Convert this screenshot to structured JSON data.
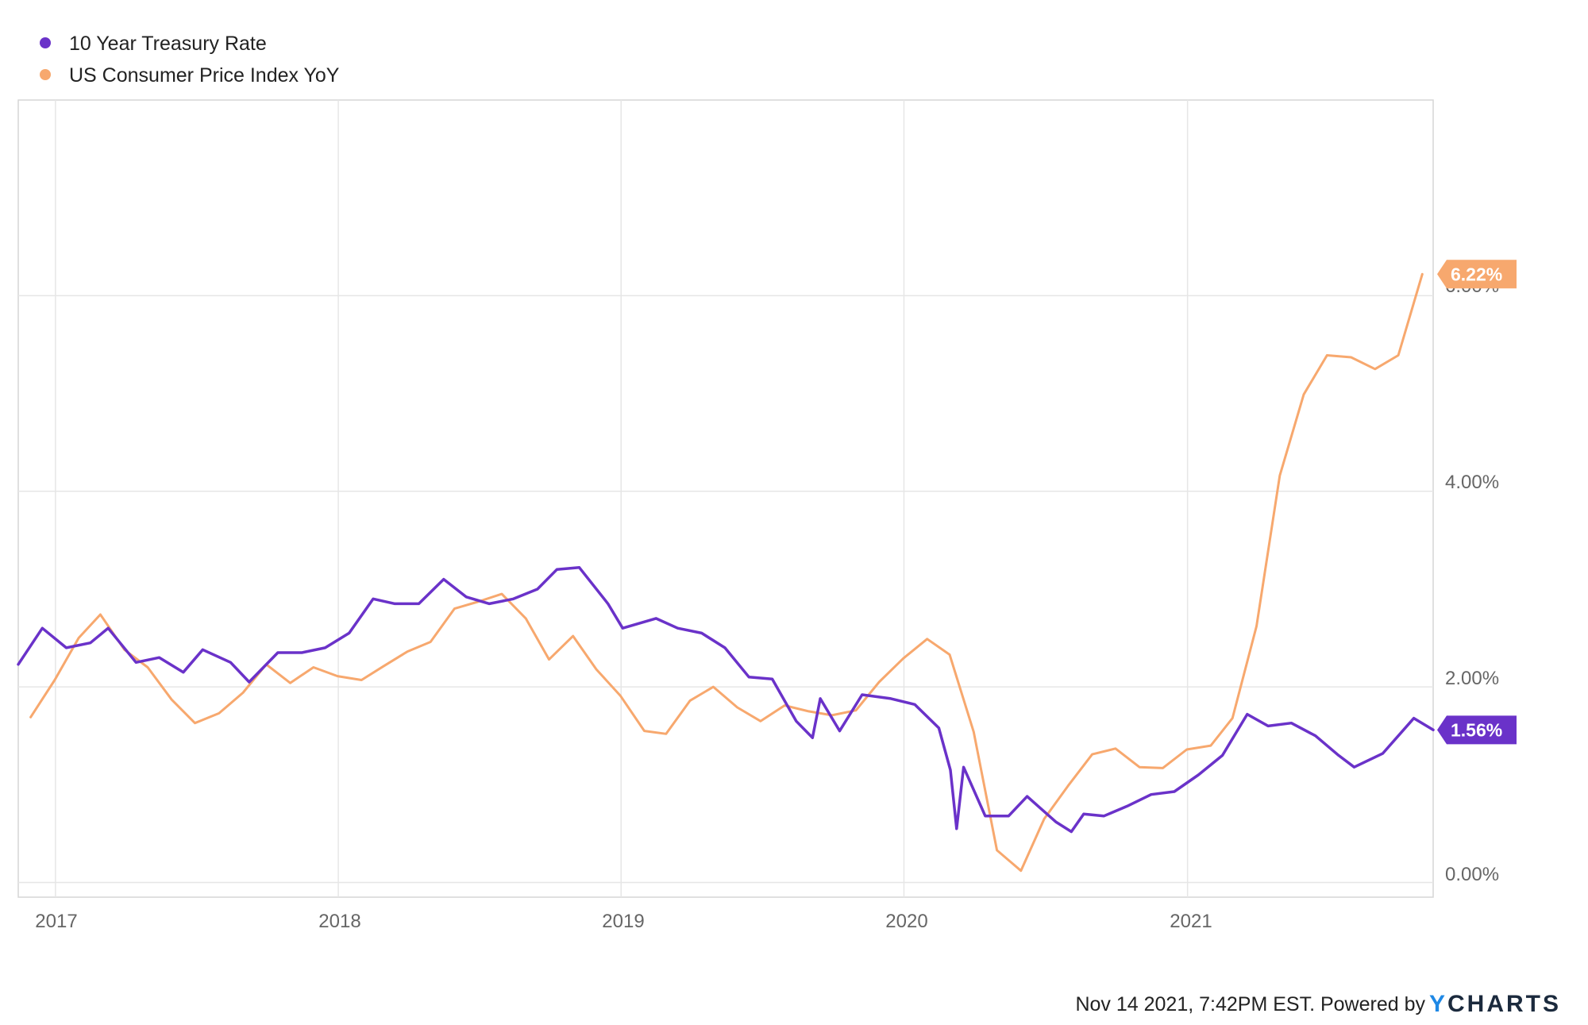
{
  "chart_data": {
    "type": "line",
    "legend": [
      {
        "name": "10 Year Treasury Rate",
        "color": "#6a32c9"
      },
      {
        "name": "US Consumer Price Index YoY",
        "color": "#f7a86e"
      }
    ],
    "x_ticks": [
      "2017",
      "2018",
      "2019",
      "2020",
      "2021"
    ],
    "y_ticks": [
      "0.00%",
      "2.00%",
      "4.00%",
      "6.00%"
    ],
    "xlim": [
      "2016-11-14",
      "2021-11-14"
    ],
    "ylim": [
      -0.15,
      8.0
    ],
    "grid": true,
    "legend_position": "top-left",
    "series": [
      {
        "name": "10 Year Treasury Rate",
        "color": "#6a32c9",
        "end_label": "1.56%",
        "points": [
          [
            "2016-11-14",
            2.23
          ],
          [
            "2016-12-15",
            2.6
          ],
          [
            "2017-01-15",
            2.4
          ],
          [
            "2017-02-15",
            2.45
          ],
          [
            "2017-03-10",
            2.6
          ],
          [
            "2017-04-15",
            2.25
          ],
          [
            "2017-05-15",
            2.3
          ],
          [
            "2017-06-15",
            2.15
          ],
          [
            "2017-07-10",
            2.38
          ],
          [
            "2017-08-15",
            2.25
          ],
          [
            "2017-09-08",
            2.05
          ],
          [
            "2017-10-15",
            2.35
          ],
          [
            "2017-11-15",
            2.35
          ],
          [
            "2017-12-15",
            2.4
          ],
          [
            "2018-01-15",
            2.55
          ],
          [
            "2018-02-15",
            2.9
          ],
          [
            "2018-03-15",
            2.85
          ],
          [
            "2018-04-15",
            2.85
          ],
          [
            "2018-05-17",
            3.1
          ],
          [
            "2018-06-15",
            2.92
          ],
          [
            "2018-07-15",
            2.85
          ],
          [
            "2018-08-15",
            2.9
          ],
          [
            "2018-09-15",
            3.0
          ],
          [
            "2018-10-10",
            3.2
          ],
          [
            "2018-11-08",
            3.22
          ],
          [
            "2018-12-15",
            2.85
          ],
          [
            "2019-01-03",
            2.6
          ],
          [
            "2019-02-15",
            2.7
          ],
          [
            "2019-03-15",
            2.6
          ],
          [
            "2019-04-15",
            2.55
          ],
          [
            "2019-05-15",
            2.4
          ],
          [
            "2019-06-15",
            2.1
          ],
          [
            "2019-07-15",
            2.08
          ],
          [
            "2019-08-15",
            1.65
          ],
          [
            "2019-09-05",
            1.48
          ],
          [
            "2019-09-15",
            1.88
          ],
          [
            "2019-10-10",
            1.55
          ],
          [
            "2019-11-08",
            1.92
          ],
          [
            "2019-12-15",
            1.88
          ],
          [
            "2020-01-15",
            1.82
          ],
          [
            "2020-02-15",
            1.58
          ],
          [
            "2020-03-01",
            1.15
          ],
          [
            "2020-03-09",
            0.55
          ],
          [
            "2020-03-18",
            1.18
          ],
          [
            "2020-04-15",
            0.68
          ],
          [
            "2020-05-15",
            0.68
          ],
          [
            "2020-06-08",
            0.88
          ],
          [
            "2020-07-15",
            0.62
          ],
          [
            "2020-08-04",
            0.52
          ],
          [
            "2020-08-20",
            0.7
          ],
          [
            "2020-09-15",
            0.68
          ],
          [
            "2020-10-15",
            0.78
          ],
          [
            "2020-11-15",
            0.9
          ],
          [
            "2020-12-15",
            0.93
          ],
          [
            "2021-01-15",
            1.1
          ],
          [
            "2021-02-15",
            1.3
          ],
          [
            "2021-03-19",
            1.72
          ],
          [
            "2021-04-15",
            1.6
          ],
          [
            "2021-05-15",
            1.63
          ],
          [
            "2021-06-15",
            1.5
          ],
          [
            "2021-07-15",
            1.3
          ],
          [
            "2021-08-04",
            1.18
          ],
          [
            "2021-09-10",
            1.32
          ],
          [
            "2021-10-20",
            1.68
          ],
          [
            "2021-11-14",
            1.56
          ]
        ]
      },
      {
        "name": "US Consumer Price Index YoY",
        "color": "#f7a86e",
        "end_label": "6.22%",
        "points": [
          [
            "2016-11-30",
            1.69
          ],
          [
            "2016-12-31",
            2.07
          ],
          [
            "2017-01-31",
            2.5
          ],
          [
            "2017-02-28",
            2.74
          ],
          [
            "2017-03-31",
            2.38
          ],
          [
            "2017-04-30",
            2.2
          ],
          [
            "2017-05-31",
            1.87
          ],
          [
            "2017-06-30",
            1.63
          ],
          [
            "2017-07-31",
            1.73
          ],
          [
            "2017-08-31",
            1.94
          ],
          [
            "2017-09-30",
            2.23
          ],
          [
            "2017-10-31",
            2.04
          ],
          [
            "2017-11-30",
            2.2
          ],
          [
            "2017-12-31",
            2.11
          ],
          [
            "2018-01-31",
            2.07
          ],
          [
            "2018-02-28",
            2.21
          ],
          [
            "2018-03-31",
            2.36
          ],
          [
            "2018-04-30",
            2.46
          ],
          [
            "2018-05-31",
            2.8
          ],
          [
            "2018-06-30",
            2.87
          ],
          [
            "2018-07-31",
            2.95
          ],
          [
            "2018-08-31",
            2.7
          ],
          [
            "2018-09-30",
            2.28
          ],
          [
            "2018-10-31",
            2.52
          ],
          [
            "2018-11-30",
            2.18
          ],
          [
            "2018-12-31",
            1.91
          ],
          [
            "2019-01-31",
            1.55
          ],
          [
            "2019-02-28",
            1.52
          ],
          [
            "2019-03-31",
            1.86
          ],
          [
            "2019-04-30",
            2.0
          ],
          [
            "2019-05-31",
            1.79
          ],
          [
            "2019-06-30",
            1.65
          ],
          [
            "2019-07-31",
            1.81
          ],
          [
            "2019-08-31",
            1.75
          ],
          [
            "2019-09-30",
            1.71
          ],
          [
            "2019-10-31",
            1.76
          ],
          [
            "2019-11-30",
            2.05
          ],
          [
            "2019-12-31",
            2.29
          ],
          [
            "2020-01-31",
            2.49
          ],
          [
            "2020-02-29",
            2.33
          ],
          [
            "2020-03-31",
            1.54
          ],
          [
            "2020-04-30",
            0.33
          ],
          [
            "2020-05-31",
            0.12
          ],
          [
            "2020-06-30",
            0.65
          ],
          [
            "2020-07-31",
            0.99
          ],
          [
            "2020-08-31",
            1.31
          ],
          [
            "2020-09-30",
            1.37
          ],
          [
            "2020-10-31",
            1.18
          ],
          [
            "2020-11-30",
            1.17
          ],
          [
            "2020-12-31",
            1.36
          ],
          [
            "2021-01-31",
            1.4
          ],
          [
            "2021-02-28",
            1.68
          ],
          [
            "2021-03-31",
            2.62
          ],
          [
            "2021-04-30",
            4.16
          ],
          [
            "2021-05-31",
            4.99
          ],
          [
            "2021-06-30",
            5.39
          ],
          [
            "2021-07-31",
            5.37
          ],
          [
            "2021-08-31",
            5.25
          ],
          [
            "2021-09-30",
            5.39
          ],
          [
            "2021-10-31",
            6.22
          ]
        ]
      }
    ]
  },
  "footer": {
    "timestamp": "Nov 14 2021, 7:42PM EST.",
    "powered_by": "Powered by",
    "brand_y": "Y",
    "brand_rest": "CHARTS"
  }
}
